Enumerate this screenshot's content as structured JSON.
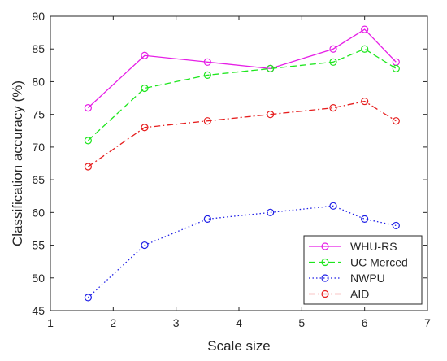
{
  "chart_data": {
    "type": "line",
    "xlabel": "Scale size",
    "ylabel": "Classification accuracy (%)",
    "xlim": [
      1,
      7
    ],
    "ylim": [
      45,
      90
    ],
    "xticks": [
      1,
      2,
      3,
      4,
      5,
      6,
      7
    ],
    "yticks": [
      45,
      50,
      55,
      60,
      65,
      70,
      75,
      80,
      85,
      90
    ],
    "grid": false,
    "legend_position": "bottom-right",
    "x": [
      1.6,
      2.5,
      3.5,
      4.5,
      5.5,
      6.0,
      6.5
    ],
    "series": [
      {
        "name": "WHU-RS",
        "values": [
          76,
          84,
          83,
          82,
          85,
          88,
          83
        ],
        "color": "#e61ee6",
        "dash": "solid",
        "marker": "circle"
      },
      {
        "name": "UC Merced",
        "values": [
          71,
          79,
          81,
          82,
          83,
          85,
          82
        ],
        "color": "#1ee61e",
        "dash": "dashed",
        "marker": "circle"
      },
      {
        "name": "NWPU",
        "values": [
          47,
          55,
          59,
          60,
          61,
          59,
          58
        ],
        "color": "#1e1ee6",
        "dash": "dotted",
        "marker": "circle"
      },
      {
        "name": "AID",
        "values": [
          67,
          73,
          74,
          75,
          76,
          77,
          74
        ],
        "color": "#e61e1e",
        "dash": "dashdot",
        "marker": "circle"
      }
    ]
  }
}
